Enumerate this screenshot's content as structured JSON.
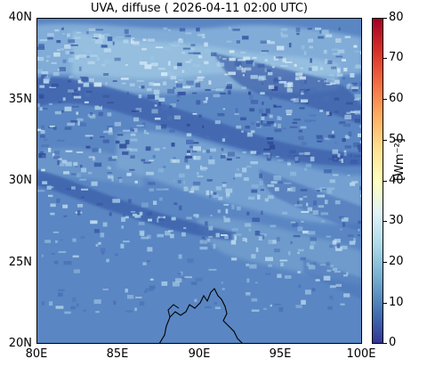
{
  "title": "UVA, diffuse ( 2026-04-11 02:00 UTC)",
  "map": {
    "lon_range": [
      80,
      100
    ],
    "lat_range": [
      20,
      40
    ],
    "x_ticks": [
      "80E",
      "85E",
      "90E",
      "95E",
      "100E"
    ],
    "y_ticks": [
      "40N",
      "35N",
      "30N",
      "25N",
      "20N"
    ],
    "field": "UVA diffuse irradiance",
    "background_color": "#5a86c3",
    "coastline_color": "#000000"
  },
  "colorbar": {
    "label": "[Wm⁻²]",
    "ticks": [
      "80",
      "70",
      "60",
      "50",
      "40",
      "30",
      "20",
      "10",
      "0"
    ],
    "range": [
      0,
      80
    ],
    "colormap": "RdYlBu_r",
    "colors": [
      "#313695",
      "#4575b4",
      "#74add1",
      "#abd9e9",
      "#e0f3f8",
      "#ffffbf",
      "#fee090",
      "#fdae61",
      "#f46d43",
      "#d73027",
      "#a50026"
    ]
  }
}
